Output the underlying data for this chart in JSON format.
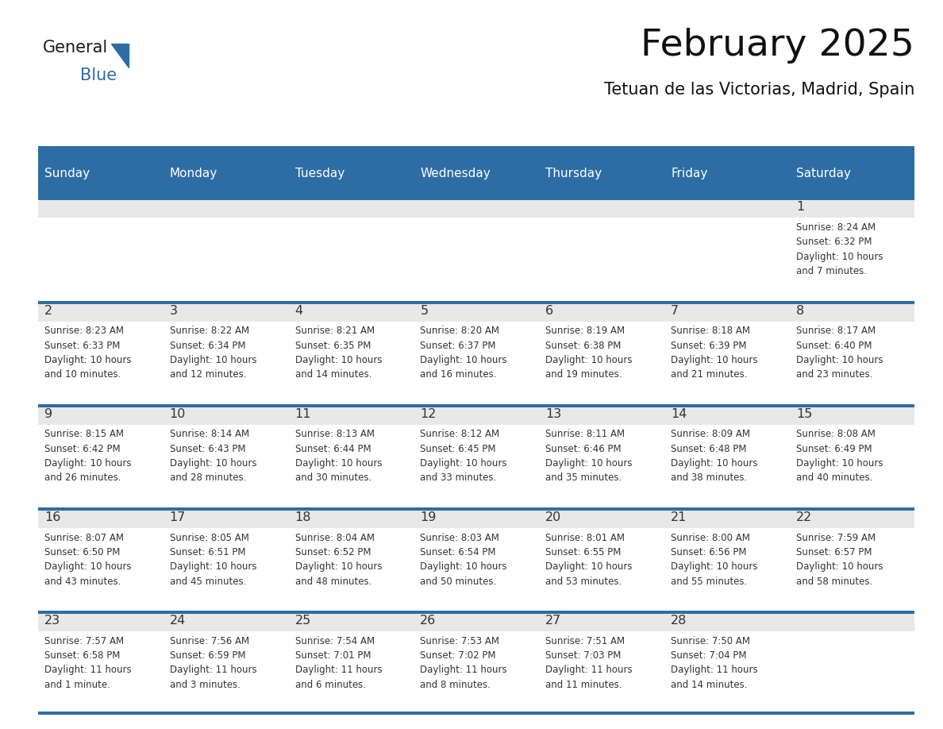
{
  "title": "February 2025",
  "subtitle": "Tetuan de las Victorias, Madrid, Spain",
  "days_of_week": [
    "Sunday",
    "Monday",
    "Tuesday",
    "Wednesday",
    "Thursday",
    "Friday",
    "Saturday"
  ],
  "header_bg": "#2E6DA4",
  "header_text": "#FFFFFF",
  "cell_top_bg": "#E8E8E8",
  "cell_body_bg": "#FFFFFF",
  "week_line_color": "#2E6DA4",
  "day_num_color": "#333333",
  "text_color": "#333333",
  "logo_general_color": "#1a1a1a",
  "logo_blue_color": "#2E6DA4",
  "weeks": [
    [
      {
        "day": null,
        "info": ""
      },
      {
        "day": null,
        "info": ""
      },
      {
        "day": null,
        "info": ""
      },
      {
        "day": null,
        "info": ""
      },
      {
        "day": null,
        "info": ""
      },
      {
        "day": null,
        "info": ""
      },
      {
        "day": 1,
        "info": "Sunrise: 8:24 AM\nSunset: 6:32 PM\nDaylight: 10 hours\nand 7 minutes."
      }
    ],
    [
      {
        "day": 2,
        "info": "Sunrise: 8:23 AM\nSunset: 6:33 PM\nDaylight: 10 hours\nand 10 minutes."
      },
      {
        "day": 3,
        "info": "Sunrise: 8:22 AM\nSunset: 6:34 PM\nDaylight: 10 hours\nand 12 minutes."
      },
      {
        "day": 4,
        "info": "Sunrise: 8:21 AM\nSunset: 6:35 PM\nDaylight: 10 hours\nand 14 minutes."
      },
      {
        "day": 5,
        "info": "Sunrise: 8:20 AM\nSunset: 6:37 PM\nDaylight: 10 hours\nand 16 minutes."
      },
      {
        "day": 6,
        "info": "Sunrise: 8:19 AM\nSunset: 6:38 PM\nDaylight: 10 hours\nand 19 minutes."
      },
      {
        "day": 7,
        "info": "Sunrise: 8:18 AM\nSunset: 6:39 PM\nDaylight: 10 hours\nand 21 minutes."
      },
      {
        "day": 8,
        "info": "Sunrise: 8:17 AM\nSunset: 6:40 PM\nDaylight: 10 hours\nand 23 minutes."
      }
    ],
    [
      {
        "day": 9,
        "info": "Sunrise: 8:15 AM\nSunset: 6:42 PM\nDaylight: 10 hours\nand 26 minutes."
      },
      {
        "day": 10,
        "info": "Sunrise: 8:14 AM\nSunset: 6:43 PM\nDaylight: 10 hours\nand 28 minutes."
      },
      {
        "day": 11,
        "info": "Sunrise: 8:13 AM\nSunset: 6:44 PM\nDaylight: 10 hours\nand 30 minutes."
      },
      {
        "day": 12,
        "info": "Sunrise: 8:12 AM\nSunset: 6:45 PM\nDaylight: 10 hours\nand 33 minutes."
      },
      {
        "day": 13,
        "info": "Sunrise: 8:11 AM\nSunset: 6:46 PM\nDaylight: 10 hours\nand 35 minutes."
      },
      {
        "day": 14,
        "info": "Sunrise: 8:09 AM\nSunset: 6:48 PM\nDaylight: 10 hours\nand 38 minutes."
      },
      {
        "day": 15,
        "info": "Sunrise: 8:08 AM\nSunset: 6:49 PM\nDaylight: 10 hours\nand 40 minutes."
      }
    ],
    [
      {
        "day": 16,
        "info": "Sunrise: 8:07 AM\nSunset: 6:50 PM\nDaylight: 10 hours\nand 43 minutes."
      },
      {
        "day": 17,
        "info": "Sunrise: 8:05 AM\nSunset: 6:51 PM\nDaylight: 10 hours\nand 45 minutes."
      },
      {
        "day": 18,
        "info": "Sunrise: 8:04 AM\nSunset: 6:52 PM\nDaylight: 10 hours\nand 48 minutes."
      },
      {
        "day": 19,
        "info": "Sunrise: 8:03 AM\nSunset: 6:54 PM\nDaylight: 10 hours\nand 50 minutes."
      },
      {
        "day": 20,
        "info": "Sunrise: 8:01 AM\nSunset: 6:55 PM\nDaylight: 10 hours\nand 53 minutes."
      },
      {
        "day": 21,
        "info": "Sunrise: 8:00 AM\nSunset: 6:56 PM\nDaylight: 10 hours\nand 55 minutes."
      },
      {
        "day": 22,
        "info": "Sunrise: 7:59 AM\nSunset: 6:57 PM\nDaylight: 10 hours\nand 58 minutes."
      }
    ],
    [
      {
        "day": 23,
        "info": "Sunrise: 7:57 AM\nSunset: 6:58 PM\nDaylight: 11 hours\nand 1 minute."
      },
      {
        "day": 24,
        "info": "Sunrise: 7:56 AM\nSunset: 6:59 PM\nDaylight: 11 hours\nand 3 minutes."
      },
      {
        "day": 25,
        "info": "Sunrise: 7:54 AM\nSunset: 7:01 PM\nDaylight: 11 hours\nand 6 minutes."
      },
      {
        "day": 26,
        "info": "Sunrise: 7:53 AM\nSunset: 7:02 PM\nDaylight: 11 hours\nand 8 minutes."
      },
      {
        "day": 27,
        "info": "Sunrise: 7:51 AM\nSunset: 7:03 PM\nDaylight: 11 hours\nand 11 minutes."
      },
      {
        "day": 28,
        "info": "Sunrise: 7:50 AM\nSunset: 7:04 PM\nDaylight: 11 hours\nand 14 minutes."
      },
      {
        "day": null,
        "info": ""
      }
    ]
  ],
  "figsize": [
    11.88,
    9.18
  ],
  "dpi": 100
}
